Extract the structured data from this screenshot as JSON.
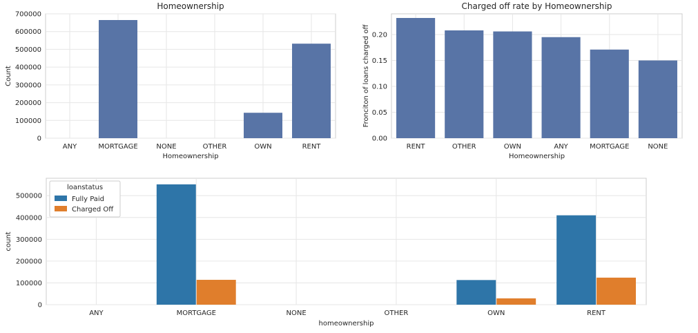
{
  "chart_data": [
    {
      "type": "bar",
      "title": "Homeownership",
      "xlabel": "Homeownership",
      "ylabel": "Count",
      "categories": [
        "ANY",
        "MORTGAGE",
        "NONE",
        "OTHER",
        "OWN",
        "RENT"
      ],
      "values": [
        0,
        665000,
        0,
        0,
        143000,
        532000
      ],
      "ylim": [
        0,
        700000
      ],
      "yticks": [
        0,
        100000,
        200000,
        300000,
        400000,
        500000,
        600000,
        700000
      ],
      "grid": true,
      "color": "#5874a6"
    },
    {
      "type": "bar",
      "title": "Charged off rate by Homeownership",
      "xlabel": "Homeownership",
      "ylabel": "Fronciton of loans charged off",
      "categories": [
        "RENT",
        "OTHER",
        "OWN",
        "ANY",
        "MORTGAGE",
        "NONE"
      ],
      "values": [
        0.232,
        0.208,
        0.206,
        0.195,
        0.171,
        0.15
      ],
      "ylim": [
        0,
        0.24
      ],
      "yticks": [
        "0.00",
        "0.05",
        "0.10",
        "0.15",
        "0.20"
      ],
      "grid": true,
      "color": "#5874a6"
    },
    {
      "type": "bar",
      "title": "",
      "xlabel": "homeownership",
      "ylabel": "count",
      "categories": [
        "ANY",
        "MORTGAGE",
        "NONE",
        "OTHER",
        "OWN",
        "RENT"
      ],
      "series": [
        {
          "name": "Fully Paid",
          "values": [
            0,
            552000,
            0,
            0,
            113000,
            410000
          ],
          "color": "#2e75a8"
        },
        {
          "name": "Charged Off",
          "values": [
            0,
            114000,
            0,
            0,
            29000,
            124000
          ],
          "color": "#e07e2c"
        }
      ],
      "ylim": [
        0,
        580000
      ],
      "yticks": [
        0,
        100000,
        200000,
        300000,
        400000,
        500000
      ],
      "grid": true,
      "legend": {
        "title": "loanstatus",
        "position": "top-left"
      }
    }
  ]
}
